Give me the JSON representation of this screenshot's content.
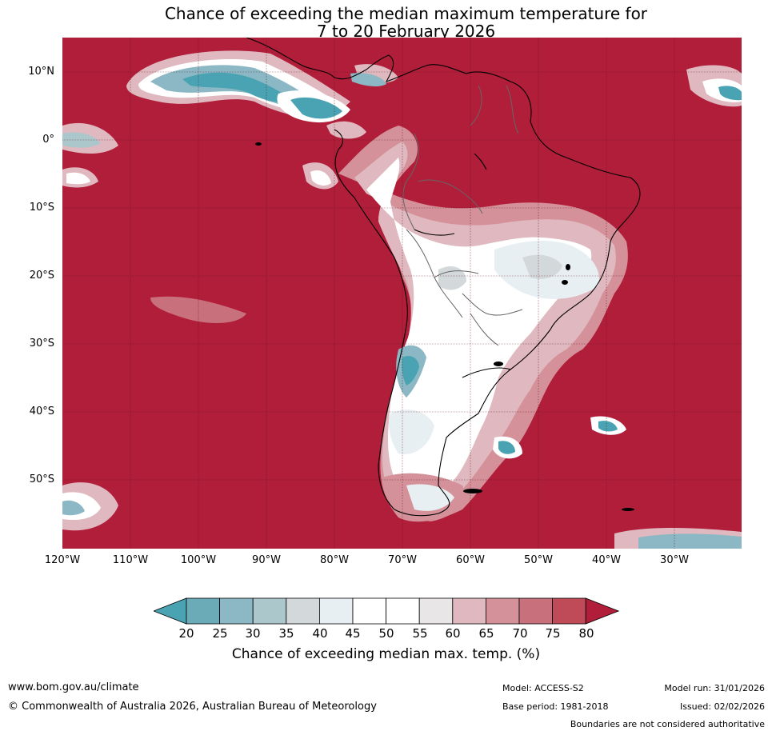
{
  "title": {
    "line1": "Chance of exceeding the median maximum temperature for",
    "line2": "7 to 20 February 2026"
  },
  "axes": {
    "lat_labels": [
      "10°N",
      "0°",
      "10°S",
      "20°S",
      "30°S",
      "40°S",
      "50°S"
    ],
    "lon_labels": [
      "120°W",
      "110°W",
      "100°W",
      "90°W",
      "80°W",
      "70°W",
      "60°W",
      "50°W",
      "40°W",
      "30°W"
    ]
  },
  "colorbar": {
    "ticks": [
      "20",
      "25",
      "30",
      "35",
      "40",
      "45",
      "50",
      "55",
      "60",
      "65",
      "70",
      "75",
      "80"
    ],
    "label": "Chance of exceeding median max. temp. (%)",
    "colors": [
      "#4aa3b2",
      "#6aabb7",
      "#8bb8c4",
      "#acc7cb",
      "#d3d9da",
      "#e8eff2",
      "#ffffff",
      "#ffffff",
      "#e8e6e7",
      "#e0b8bf",
      "#d49199",
      "#c8707c",
      "#bf4a58",
      "#b01e3a"
    ]
  },
  "map": {
    "background_color": "#b01e3a",
    "region": "South America and surrounding oceans",
    "lat_range": [
      -60,
      15
    ],
    "lon_range": [
      -120,
      -20
    ]
  },
  "footer": {
    "website": "www.bom.gov.au/climate",
    "copyright": "© Commonwealth of Australia 2026, Australian Bureau of Meteorology",
    "model": "Model: ACCESS-S2",
    "base_period": "Base period: 1981-2018",
    "model_run": "Model run: 31/01/2026",
    "issued": "Issued: 02/02/2026",
    "disclaimer": "Boundaries are not considered authoritative"
  }
}
